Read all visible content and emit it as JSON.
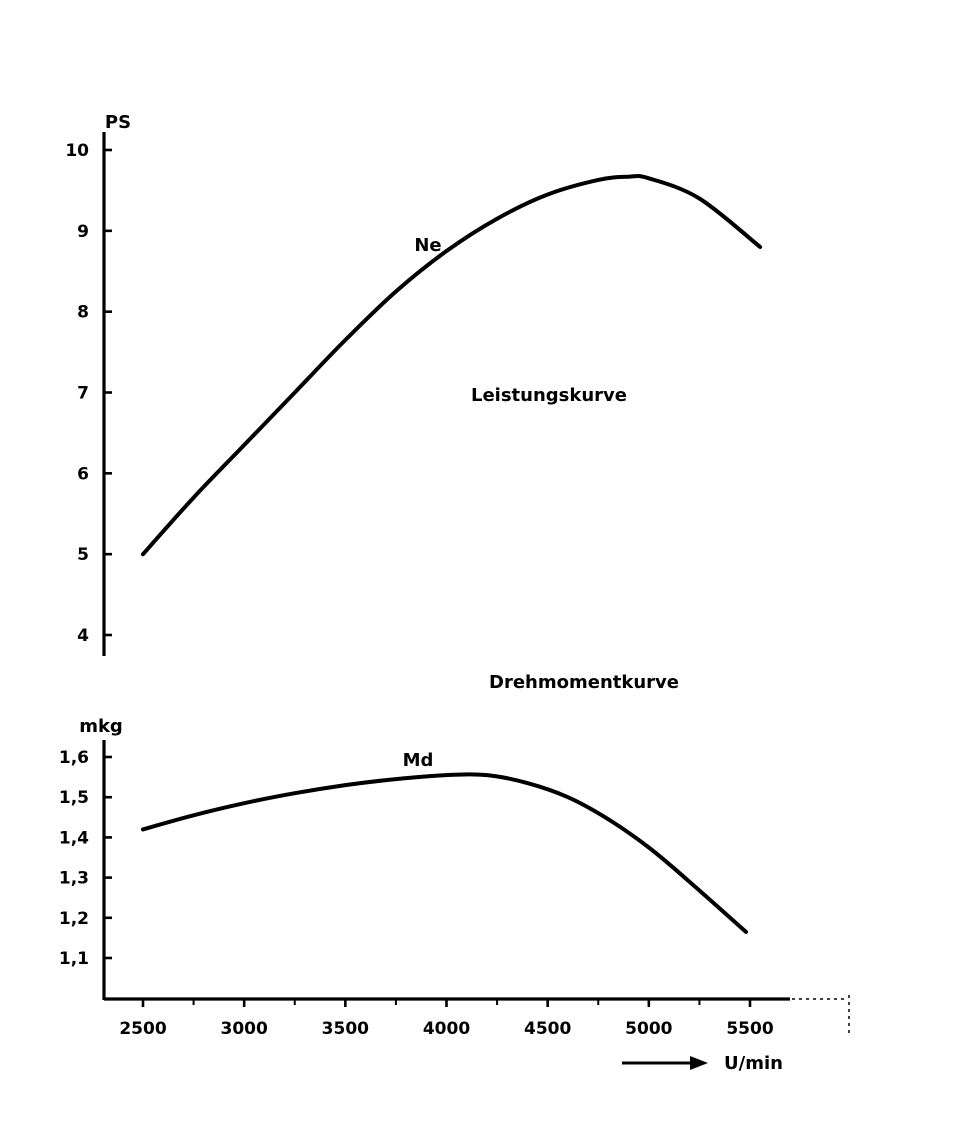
{
  "chart_data": [
    {
      "type": "line",
      "title": "Leistungskurve",
      "ylabel": "PS",
      "xlabel": "",
      "ylim": [
        4,
        10
      ],
      "xlim": [
        2500,
        5500
      ],
      "yticks": [
        4,
        5,
        6,
        7,
        8,
        9,
        10
      ],
      "yticklabels": [
        "4",
        "5",
        "6",
        "7",
        "8",
        "9",
        "10"
      ],
      "grid": false,
      "series": [
        {
          "name": "Ne",
          "x": [
            2500,
            2750,
            3000,
            3250,
            3500,
            3750,
            4000,
            4250,
            4500,
            4750,
            4900,
            5000,
            5250,
            5550
          ],
          "values": [
            5.0,
            5.7,
            6.35,
            7.0,
            7.65,
            8.25,
            8.75,
            9.15,
            9.45,
            9.63,
            9.67,
            9.65,
            9.4,
            8.8
          ]
        }
      ]
    },
    {
      "type": "line",
      "title": "Drehmomentkurve",
      "ylabel": "mkg",
      "xlabel": "U/min",
      "ylim": [
        1.0,
        1.6
      ],
      "xlim": [
        2500,
        5500
      ],
      "yticks": [
        1.1,
        1.2,
        1.3,
        1.4,
        1.5,
        1.6
      ],
      "yticklabels": [
        "1,1",
        "1,2",
        "1,3",
        "1,4",
        "1,5",
        "1,6"
      ],
      "xticks": [
        2500,
        3000,
        3500,
        4000,
        4500,
        5000,
        5500
      ],
      "xticklabels": [
        "2500",
        "3000",
        "3500",
        "4000",
        "4500",
        "5000",
        "5500"
      ],
      "grid": false,
      "series": [
        {
          "name": "Md",
          "x": [
            2500,
            2750,
            3000,
            3250,
            3500,
            3750,
            4000,
            4200,
            4400,
            4600,
            4800,
            5000,
            5200,
            5480
          ],
          "values": [
            1.42,
            1.455,
            1.485,
            1.51,
            1.53,
            1.545,
            1.555,
            1.555,
            1.535,
            1.5,
            1.445,
            1.375,
            1.29,
            1.165
          ]
        }
      ]
    }
  ]
}
